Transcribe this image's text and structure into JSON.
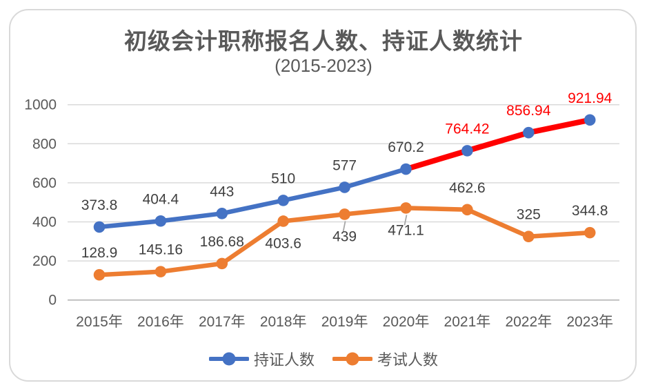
{
  "title": "初级会计职称报名人数、持证人数统计",
  "subtitle": "(2015-2023)",
  "chart_data": {
    "type": "line",
    "title": "初级会计职称报名人数、持证人数统计",
    "subtitle": "(2015-2023)",
    "categories": [
      "2015年",
      "2016年",
      "2017年",
      "2018年",
      "2019年",
      "2020年",
      "2021年",
      "2022年",
      "2023年"
    ],
    "series": [
      {
        "name": "持证人数",
        "color": "#4472C4",
        "values": [
          373.8,
          404.4,
          443,
          510,
          577,
          670.2,
          764.42,
          856.94,
          921.94
        ],
        "labels": [
          "373.8",
          "404.4",
          "443",
          "510",
          "577",
          "670.2",
          "764.42",
          "856.94",
          "921.94"
        ],
        "label_color": "#404040",
        "highlight": {
          "from_index": 5,
          "line_color": "#FF0000",
          "label_color": "#FF0000"
        }
      },
      {
        "name": "考试人数",
        "color": "#ED7D31",
        "values": [
          128.9,
          145.16,
          186.68,
          403.6,
          439,
          471.1,
          462.6,
          325,
          344.8
        ],
        "labels": [
          "128.9",
          "145.16",
          "186.68",
          "403.6",
          "439",
          "471.1",
          "462.6",
          "325",
          "344.8"
        ],
        "label_color": "#404040",
        "below_label_indices": [
          3,
          4,
          5
        ],
        "leader_line_indices": [
          4,
          5
        ]
      }
    ],
    "yticks": [
      0,
      200,
      400,
      600,
      800,
      1000
    ],
    "ylim": [
      0,
      1000
    ],
    "grid": true,
    "legend_position": "bottom",
    "colors": {
      "gridline": "#D9D9D9",
      "baseline": "#BFBFBF",
      "axis_text": "#595959",
      "leader_line": "#A6A6A6"
    }
  }
}
